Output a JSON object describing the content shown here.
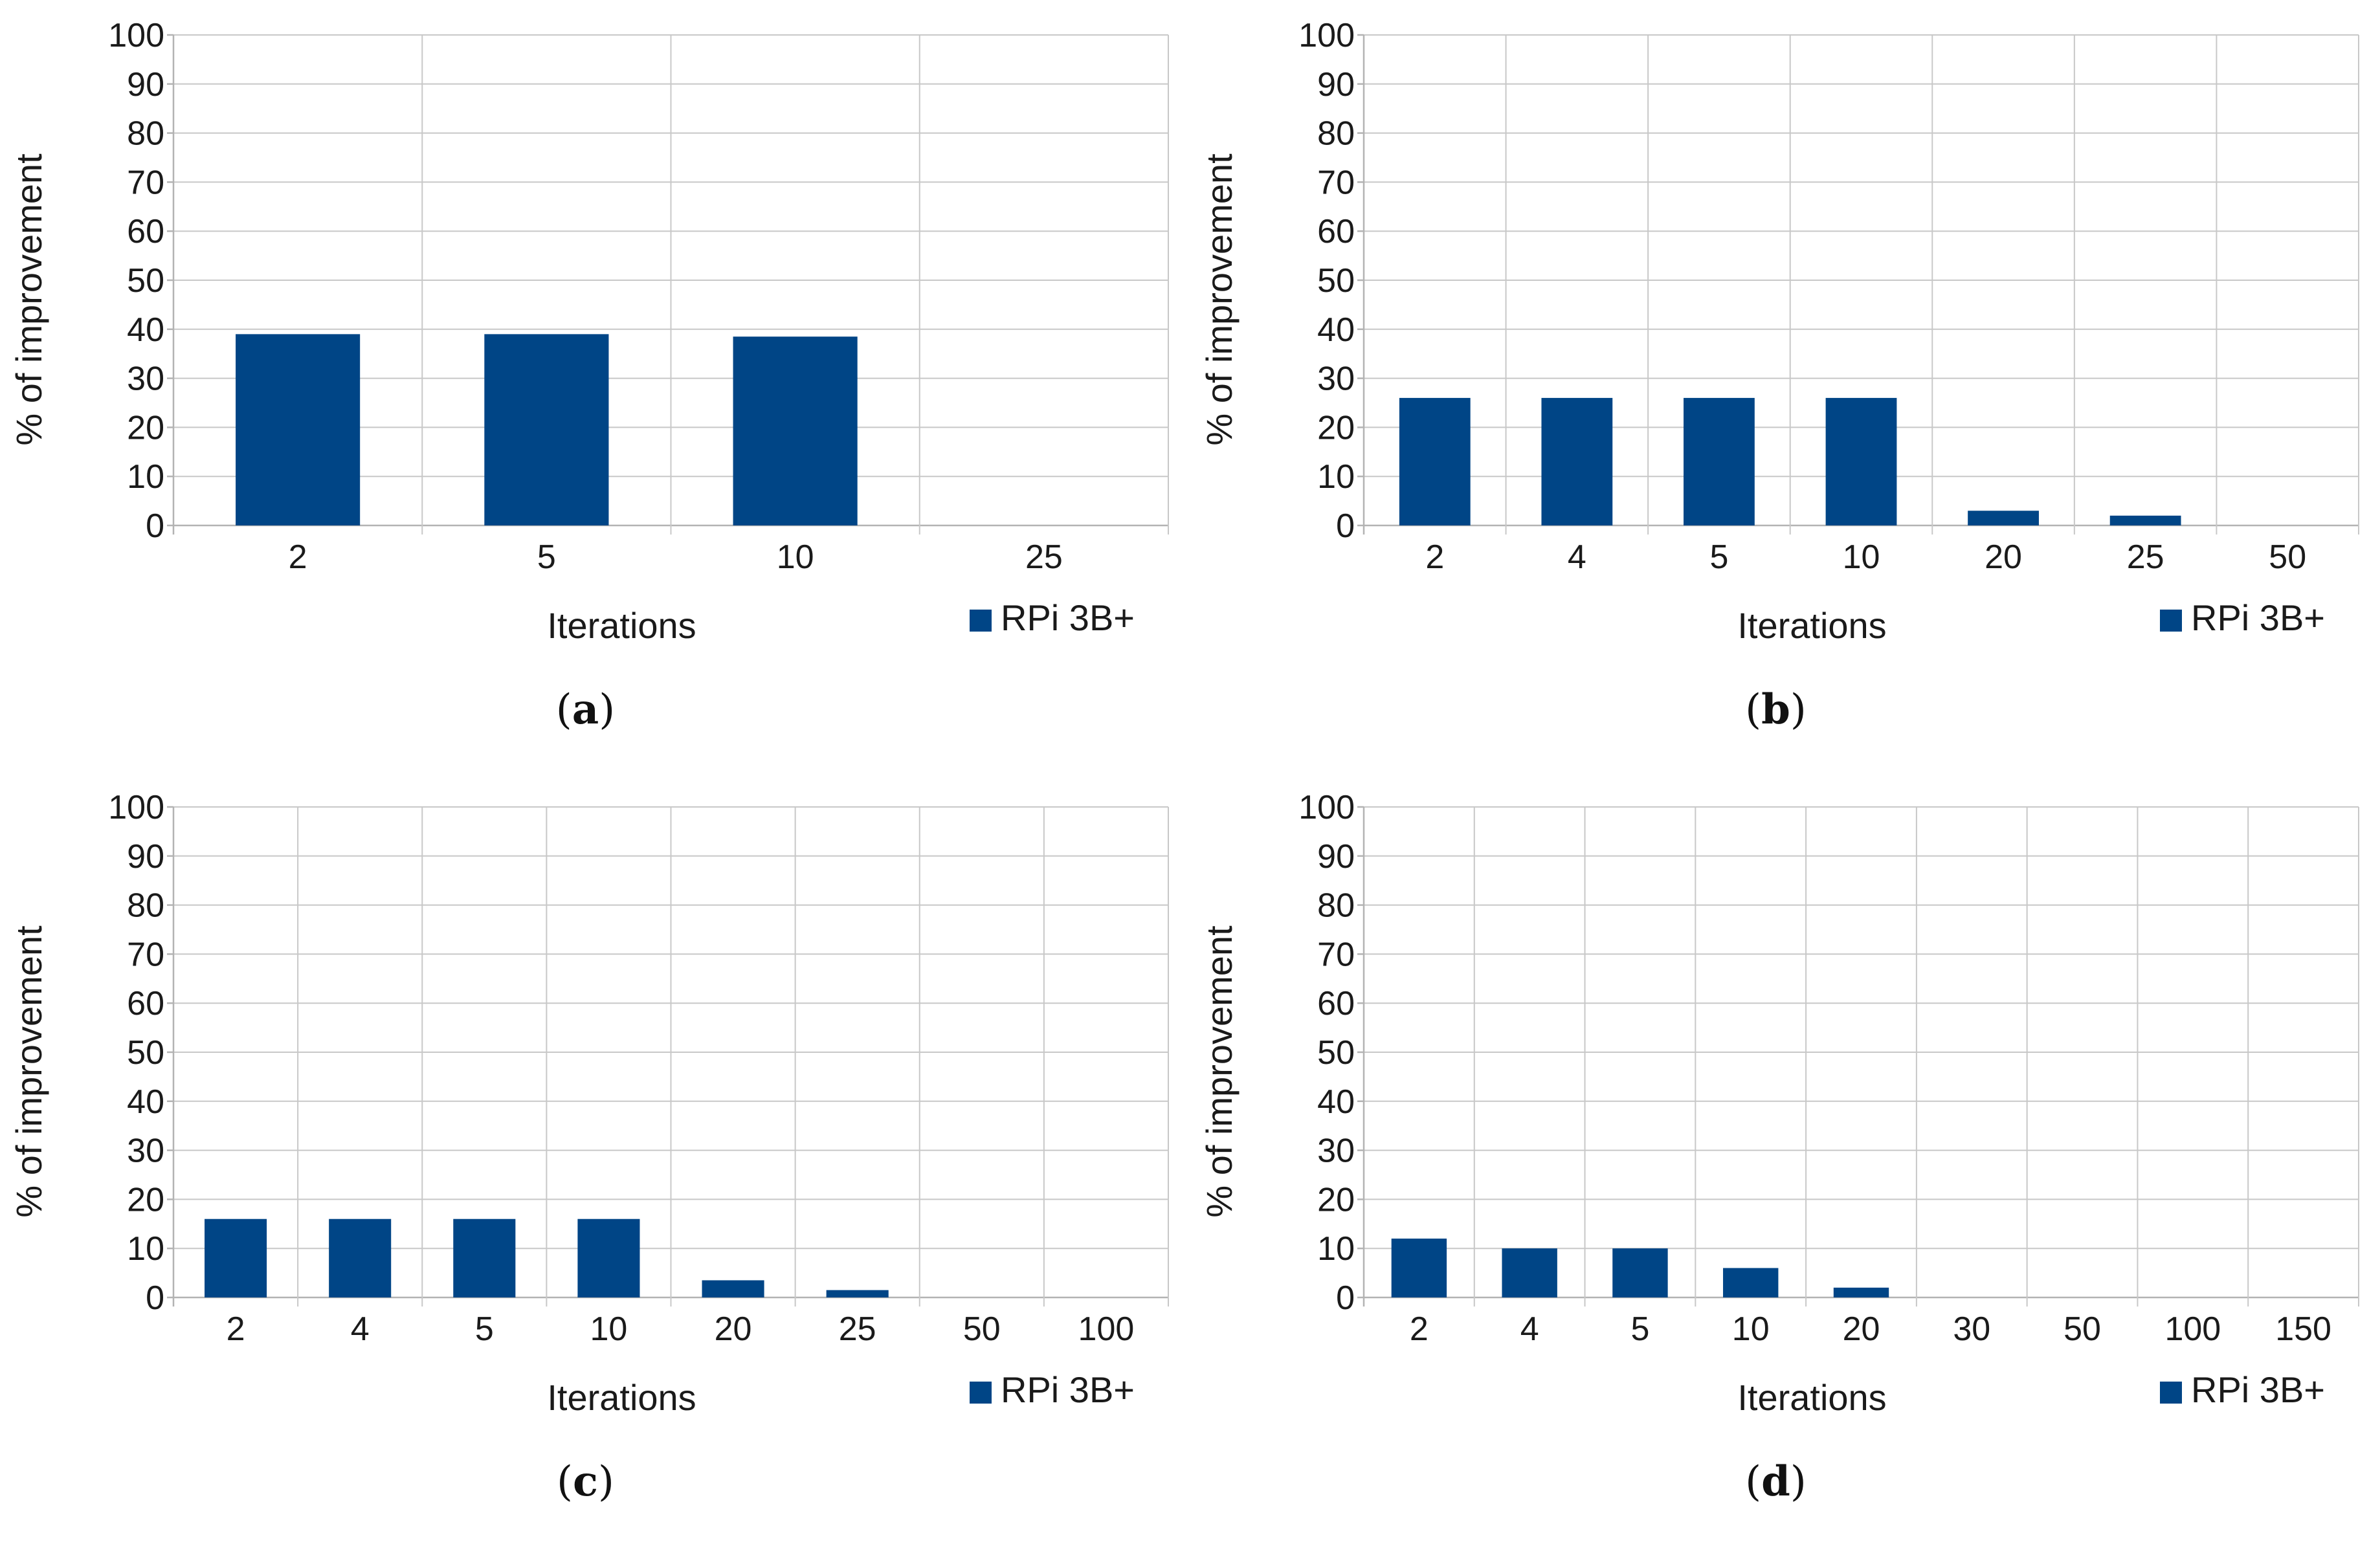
{
  "chart_data": [
    {
      "type": "bar",
      "panel": "(a)",
      "panel_letter": "a",
      "categories": [
        "2",
        "5",
        "10",
        "25"
      ],
      "series": [
        {
          "name": "RPi 3B+",
          "values": [
            39,
            39,
            38.5,
            0
          ]
        }
      ],
      "xlabel": "Iterations",
      "ylabel": "% of improvement",
      "ylim": [
        0,
        100
      ],
      "yticks": [
        "0",
        "10",
        "20",
        "30",
        "40",
        "50",
        "60",
        "70",
        "80",
        "90",
        "100"
      ],
      "grid": true,
      "legend": "bottom-right",
      "bar_color": "#004586"
    },
    {
      "type": "bar",
      "panel": "(b)",
      "panel_letter": "b",
      "categories": [
        "2",
        "4",
        "5",
        "10",
        "20",
        "25",
        "50"
      ],
      "series": [
        {
          "name": "RPi 3B+",
          "values": [
            26,
            26,
            26,
            26,
            3,
            2,
            0
          ]
        }
      ],
      "xlabel": "Iterations",
      "ylabel": "% of improvement",
      "ylim": [
        0,
        100
      ],
      "yticks": [
        "0",
        "10",
        "20",
        "30",
        "40",
        "50",
        "60",
        "70",
        "80",
        "90",
        "100"
      ],
      "grid": true,
      "legend": "bottom-right",
      "bar_color": "#004586"
    },
    {
      "type": "bar",
      "panel": "(c)",
      "panel_letter": "c",
      "categories": [
        "2",
        "4",
        "5",
        "10",
        "20",
        "25",
        "50",
        "100"
      ],
      "series": [
        {
          "name": "RPi 3B+",
          "values": [
            16,
            16,
            16,
            16,
            3.5,
            1.5,
            0,
            0
          ]
        }
      ],
      "xlabel": "Iterations",
      "ylabel": "% of improvement",
      "ylim": [
        0,
        100
      ],
      "yticks": [
        "0",
        "10",
        "20",
        "30",
        "40",
        "50",
        "60",
        "70",
        "80",
        "90",
        "100"
      ],
      "grid": true,
      "legend": "bottom-right",
      "bar_color": "#004586"
    },
    {
      "type": "bar",
      "panel": "(d)",
      "panel_letter": "d",
      "categories": [
        "2",
        "4",
        "5",
        "10",
        "20",
        "30",
        "50",
        "100",
        "150"
      ],
      "series": [
        {
          "name": "RPi 3B+",
          "values": [
            12,
            10,
            10,
            6,
            2,
            0,
            0,
            0,
            0
          ]
        }
      ],
      "xlabel": "Iterations",
      "ylabel": "% of improvement",
      "ylim": [
        0,
        100
      ],
      "yticks": [
        "0",
        "10",
        "20",
        "30",
        "40",
        "50",
        "60",
        "70",
        "80",
        "90",
        "100"
      ],
      "grid": true,
      "legend": "bottom-right",
      "bar_color": "#004586"
    }
  ]
}
